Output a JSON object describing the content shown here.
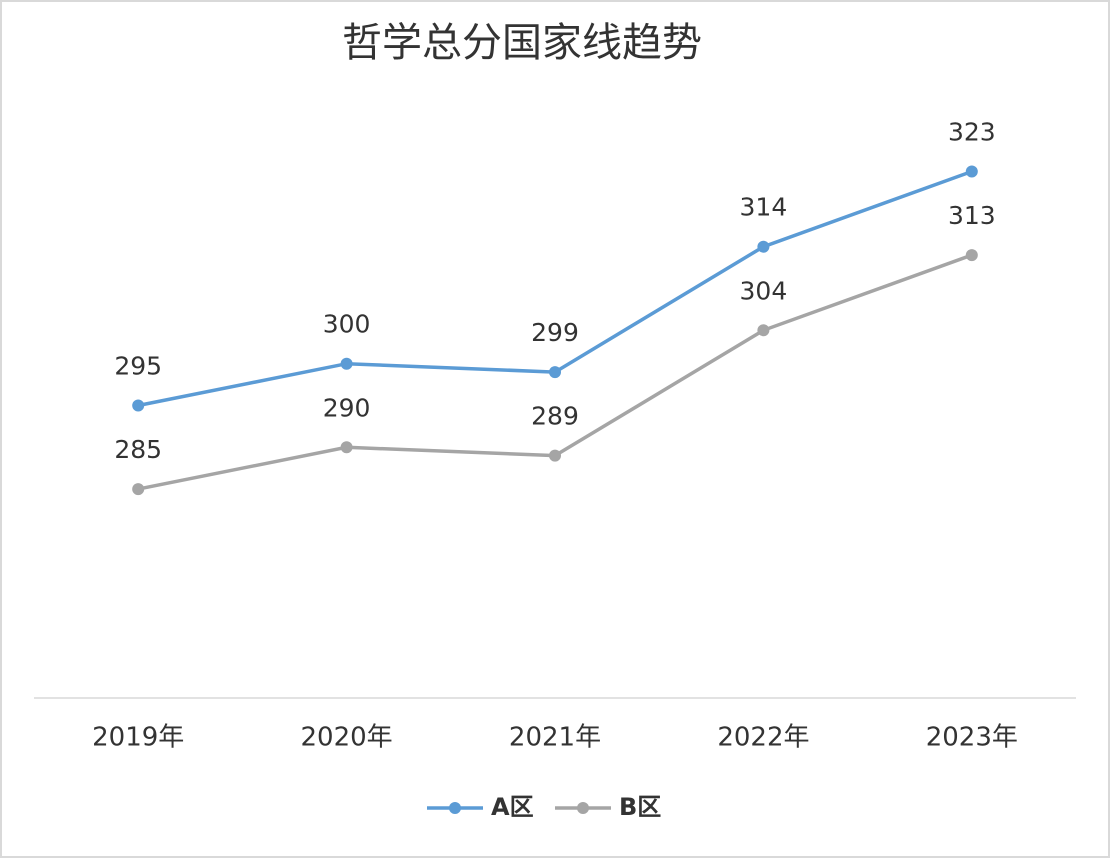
{
  "chart_data": {
    "type": "line",
    "title": "哲学总分国家线趋势",
    "categories": [
      "2019年",
      "2020年",
      "2021年",
      "2022年",
      "2023年"
    ],
    "series": [
      {
        "name": "A区",
        "color": "#5b9bd5",
        "values": [
          295,
          300,
          299,
          314,
          323
        ]
      },
      {
        "name": "B区",
        "color": "#a5a5a5",
        "values": [
          285,
          290,
          289,
          304,
          313
        ]
      }
    ],
    "ylim": [
      260,
      330
    ],
    "legend": "bottom",
    "data_labels": true
  }
}
